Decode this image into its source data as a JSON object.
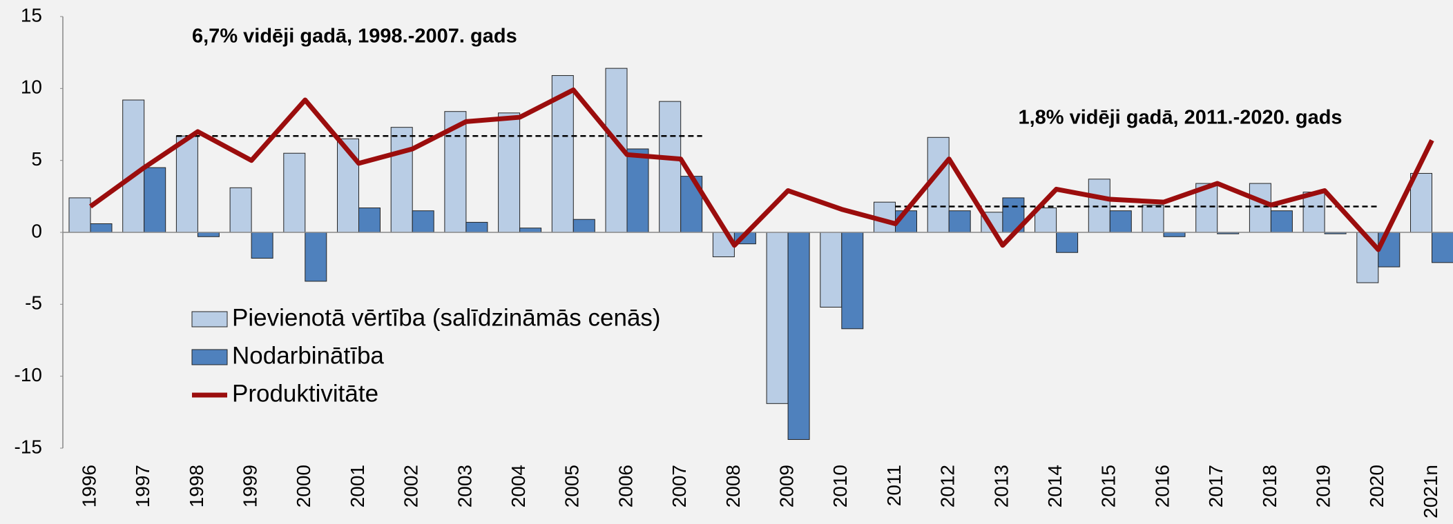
{
  "chart_data": {
    "type": "bar",
    "categories": [
      "1996",
      "1997",
      "1998",
      "1999",
      "2000",
      "2001",
      "2002",
      "2003",
      "2004",
      "2005",
      "2006",
      "2007",
      "2008",
      "2009",
      "2010",
      "2011",
      "2012",
      "2013",
      "2014",
      "2015",
      "2016",
      "2017",
      "2018",
      "2019",
      "2020",
      "2021n"
    ],
    "series": [
      {
        "name": "Pievienotā vērtība (salīdzināmās cenās)",
        "type": "bar",
        "color": "#b9cde5",
        "values": [
          2.4,
          9.2,
          6.7,
          3.1,
          5.5,
          6.5,
          7.3,
          8.4,
          8.3,
          10.9,
          11.4,
          9.1,
          -1.7,
          -11.9,
          -5.2,
          2.1,
          6.6,
          1.4,
          1.7,
          3.7,
          1.9,
          3.4,
          3.4,
          2.8,
          -3.5,
          4.1
        ]
      },
      {
        "name": "Nodarbinātība",
        "type": "bar",
        "color": "#4f81bd",
        "values": [
          0.6,
          4.5,
          -0.3,
          -1.8,
          -3.4,
          1.7,
          1.5,
          0.7,
          0.3,
          0.9,
          5.8,
          3.9,
          -0.8,
          -14.4,
          -6.7,
          1.5,
          1.5,
          2.4,
          -1.4,
          1.5,
          -0.3,
          -0.1,
          1.5,
          -0.1,
          -2.4,
          -2.1
        ]
      },
      {
        "name": "Produktivitāte",
        "type": "line",
        "color": "#9b0d0d",
        "values": [
          1.8,
          4.5,
          7.0,
          5.0,
          9.2,
          4.8,
          5.8,
          7.7,
          8.0,
          9.9,
          5.4,
          5.1,
          -0.9,
          2.9,
          1.6,
          0.6,
          5.1,
          -0.9,
          3.0,
          2.3,
          2.1,
          3.4,
          1.9,
          2.9,
          -1.2,
          6.4
        ]
      }
    ],
    "reference_lines": [
      {
        "value": 6.7,
        "from": "1998",
        "to": "2007",
        "label": "6,7% vidēji gadā, 1998.-2007. gads"
      },
      {
        "value": 1.8,
        "from": "2011",
        "to": "2020",
        "label": "1,8% vidēji gadā, 2011.-2020. gads"
      }
    ],
    "ylim": [
      -15,
      15
    ],
    "yticks": [
      -15,
      -10,
      -5,
      0,
      5,
      10,
      15
    ],
    "grid": false,
    "legend": "lower left"
  }
}
